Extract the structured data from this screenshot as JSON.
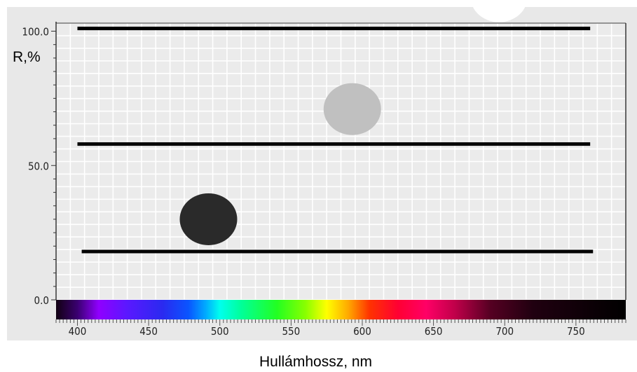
{
  "chart_data": {
    "type": "line",
    "ylabel": "R,%",
    "xlabel": "Hullámhossz, nm",
    "xlim": [
      385,
      785
    ],
    "ylim": [
      0,
      103
    ],
    "x_ticks": [
      400,
      450,
      500,
      550,
      600,
      650,
      700,
      750
    ],
    "x_tick_labels": [
      "400",
      "450",
      "500",
      "550",
      "600",
      "650",
      "700",
      "750"
    ],
    "y_ticks": [
      0,
      50,
      100
    ],
    "y_tick_labels": [
      "0.0",
      "50.0",
      "100.0"
    ],
    "grid": true,
    "series": [
      {
        "x": [
          400,
          760
        ],
        "y": [
          101,
          101
        ],
        "color": "#000000"
      },
      {
        "x": [
          400,
          760
        ],
        "y": [
          58,
          58
        ],
        "color": "#000000"
      },
      {
        "x": [
          403,
          762
        ],
        "y": [
          18,
          18
        ],
        "color": "#000000"
      }
    ],
    "markers": [
      {
        "x": 696,
        "y": 113,
        "color": "#ffffff"
      },
      {
        "x": 593,
        "y": 71,
        "color": "#c0c0c0"
      },
      {
        "x": 492,
        "y": 30,
        "color": "#2a2a2a"
      }
    ],
    "spectrum_bar": {
      "x_range": [
        385,
        785
      ],
      "stops": [
        {
          "x": 385,
          "color": "#120012"
        },
        {
          "x": 400,
          "color": "#3a0070"
        },
        {
          "x": 415,
          "color": "#9000ff"
        },
        {
          "x": 435,
          "color": "#5a18ff"
        },
        {
          "x": 460,
          "color": "#2a2af0"
        },
        {
          "x": 478,
          "color": "#0a55ff"
        },
        {
          "x": 490,
          "color": "#00aaff"
        },
        {
          "x": 500,
          "color": "#00ffee"
        },
        {
          "x": 515,
          "color": "#00ff99"
        },
        {
          "x": 540,
          "color": "#22ff22"
        },
        {
          "x": 560,
          "color": "#88ff00"
        },
        {
          "x": 575,
          "color": "#ffff00"
        },
        {
          "x": 590,
          "color": "#ffaa00"
        },
        {
          "x": 605,
          "color": "#ff3300"
        },
        {
          "x": 625,
          "color": "#ff0033"
        },
        {
          "x": 645,
          "color": "#ff0066"
        },
        {
          "x": 665,
          "color": "#c0004a"
        },
        {
          "x": 690,
          "color": "#550022"
        },
        {
          "x": 720,
          "color": "#200010"
        },
        {
          "x": 785,
          "color": "#000000"
        }
      ]
    }
  },
  "colors": {
    "page_background": "#ffffff",
    "frame_background": "#e8e8e8",
    "plot_background": "#ebebeb",
    "grid": "#ffffff",
    "axis": "#333333"
  }
}
